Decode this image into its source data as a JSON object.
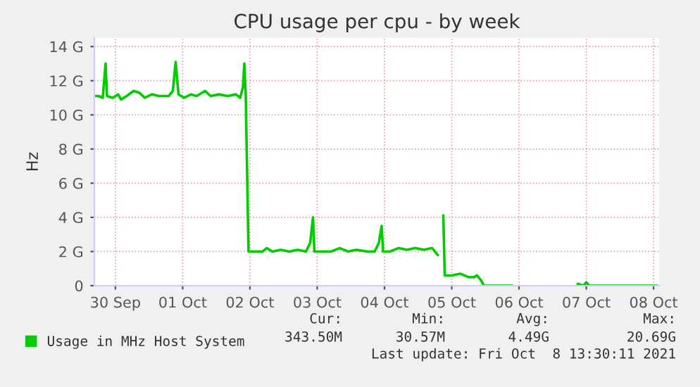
{
  "chart_data": {
    "type": "line",
    "title": "CPU usage per cpu - by week",
    "ylabel": "Hz",
    "x": [
      "2021-09-29T16:30",
      "2021-09-29T18:00",
      "2021-09-29T19:30",
      "2021-09-29T20:30",
      "2021-09-29T21:00",
      "2021-09-29T23:00",
      "2021-09-30T01:00",
      "2021-09-30T02:00",
      "2021-09-30T04:00",
      "2021-09-30T06:30",
      "2021-09-30T08:30",
      "2021-09-30T10:30",
      "2021-09-30T13:00",
      "2021-09-30T15:30",
      "2021-09-30T19:00",
      "2021-09-30T20:30",
      "2021-09-30T21:30",
      "2021-09-30T22:30",
      "2021-10-01T00:30",
      "2021-10-01T03:00",
      "2021-10-01T05:00",
      "2021-10-01T08:00",
      "2021-10-01T10:00",
      "2021-10-01T13:00",
      "2021-10-01T16:00",
      "2021-10-01T19:00",
      "2021-10-01T20:30",
      "2021-10-01T21:30",
      "2021-10-01T22:00",
      "2021-10-01T22:30",
      "2021-10-01T23:30",
      "2021-10-02T02:00",
      "2021-10-02T04:30",
      "2021-10-02T06:00",
      "2021-10-02T08:00",
      "2021-10-02T11:00",
      "2021-10-02T14:00",
      "2021-10-02T17:00",
      "2021-10-02T20:00",
      "2021-10-02T21:30",
      "2021-10-02T22:30",
      "2021-10-02T23:00",
      "2021-10-03T02:00",
      "2021-10-03T05:00",
      "2021-10-03T08:00",
      "2021-10-03T11:00",
      "2021-10-03T14:00",
      "2021-10-03T18:00",
      "2021-10-03T20:30",
      "2021-10-03T22:00",
      "2021-10-03T23:00",
      "2021-10-03T23:30",
      "2021-10-04T02:00",
      "2021-10-04T05:00",
      "2021-10-04T08:00",
      "2021-10-04T11:00",
      "2021-10-04T14:00",
      "2021-10-04T17:00",
      "2021-10-04T18:00",
      "2021-10-04T19:00",
      "2021-10-04T20:00",
      "2021-10-04T21:00",
      "2021-10-04T21:30",
      "2021-10-05T00:00",
      "2021-10-05T03:00",
      "2021-10-05T06:00",
      "2021-10-05T08:00",
      "2021-10-05T09:00",
      "2021-10-05T10:30",
      "2021-10-05T11:30",
      "2021-10-05T21:30",
      "2021-10-06T06:00",
      "2021-10-06T21:00",
      "2021-10-06T23:00",
      "2021-10-07T00:00",
      "2021-10-07T01:00",
      "2021-10-08T01:00"
    ],
    "series": [
      {
        "name": "Usage in MHz Host System",
        "color": "#00cc00",
        "values": [
          11.1,
          11.1,
          11.0,
          13.0,
          11.1,
          11.0,
          11.2,
          10.9,
          11.1,
          11.4,
          11.3,
          11.0,
          11.2,
          11.1,
          11.1,
          11.4,
          13.1,
          11.2,
          11.0,
          11.2,
          11.1,
          11.4,
          11.1,
          11.2,
          11.1,
          11.2,
          11.0,
          11.6,
          13.0,
          11.2,
          2.0,
          2.0,
          2.0,
          2.2,
          2.0,
          2.1,
          2.0,
          2.1,
          2.0,
          2.5,
          4.0,
          2.0,
          2.0,
          2.0,
          2.2,
          2.0,
          2.1,
          2.0,
          2.0,
          2.5,
          3.5,
          2.0,
          2.0,
          2.2,
          2.1,
          2.2,
          2.1,
          2.2,
          2.0,
          1.8,
          null,
          4.1,
          0.6,
          0.6,
          0.7,
          0.5,
          0.5,
          0.6,
          0.3,
          0,
          0,
          null,
          0.1,
          0,
          0.2,
          0,
          0
        ]
      }
    ],
    "xlim": [
      "2021-09-29T16:30",
      "2021-10-08T02:00"
    ],
    "xticks": [
      {
        "value": "2021-09-30",
        "label": "30 Sep"
      },
      {
        "value": "2021-10-01",
        "label": "01 Oct"
      },
      {
        "value": "2021-10-02",
        "label": "02 Oct"
      },
      {
        "value": "2021-10-03",
        "label": "03 Oct"
      },
      {
        "value": "2021-10-04",
        "label": "04 Oct"
      },
      {
        "value": "2021-10-05",
        "label": "05 Oct"
      },
      {
        "value": "2021-10-06",
        "label": "06 Oct"
      },
      {
        "value": "2021-10-07",
        "label": "07 Oct"
      },
      {
        "value": "2021-10-08",
        "label": "08 Oct"
      }
    ],
    "ylim": [
      0,
      14.5
    ],
    "yticks": [
      0,
      {
        "value": 2,
        "label": "2 G"
      },
      {
        "value": 4,
        "label": "4 G"
      },
      {
        "value": 6,
        "label": "6 G"
      },
      {
        "value": 8,
        "label": "8 G"
      },
      {
        "value": 10,
        "label": "10 G"
      },
      {
        "value": 12,
        "label": "12 G"
      },
      {
        "value": 14,
        "label": "14 G"
      }
    ],
    "grid": true,
    "legend": "bottom",
    "marker": "none",
    "line_style": "solid",
    "annotations": [
      "Cur:",
      "Min:",
      "Avg:",
      "Max:",
      "343.50M",
      "30.57M",
      "4.49G",
      "20.69G",
      "Last update: Fri Oct  8 13:30:11 2021"
    ]
  }
}
